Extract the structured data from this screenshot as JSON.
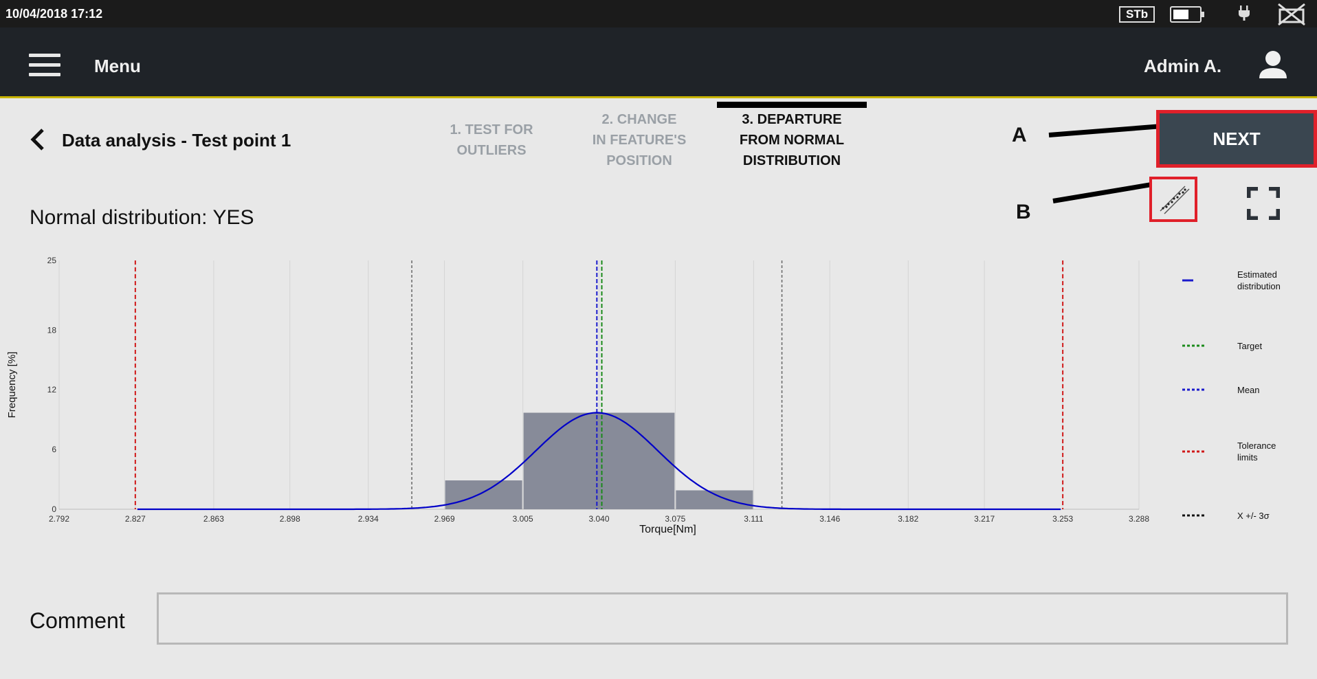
{
  "status": {
    "datetime": "10/04/2018 17:12",
    "stb": "STb",
    "battery_level": 0.6
  },
  "nav": {
    "menu_label": "Menu",
    "user_name": "Admin A."
  },
  "page": {
    "title": "Data analysis - Test point 1"
  },
  "steps": [
    {
      "line1": "1. TEST FOR",
      "line2": "OUTLIERS",
      "line3": "",
      "active": false
    },
    {
      "line1": "2. CHANGE",
      "line2": "IN FEATURE'S",
      "line3": "POSITION",
      "active": false
    },
    {
      "line1": "3. DEPARTURE",
      "line2": "FROM NORMAL",
      "line3": "DISTRIBUTION",
      "active": true
    }
  ],
  "toolbar": {
    "next_label": "NEXT"
  },
  "annotations": {
    "a": "A",
    "b": "B"
  },
  "result": {
    "label": "Normal distribution:",
    "value": "YES"
  },
  "comment": {
    "label": "Comment",
    "value": ""
  },
  "colors": {
    "accent_red": "#e0202a",
    "nav_bg": "#1f2328",
    "bar": "#878b99",
    "curve": "#0000c8",
    "target": "#1a8a1a",
    "mean": "#1a1acc",
    "tolerance": "#d01818",
    "sigma": "#333333"
  },
  "chart_data": {
    "type": "bar",
    "xlabel": "Torque[Nm]",
    "ylabel": "Frequency [%]",
    "ylim": [
      0,
      25
    ],
    "yticks": [
      "0",
      "6",
      "12",
      "18",
      "25"
    ],
    "xlim": [
      2.792,
      3.288
    ],
    "xticks": [
      "2.792",
      "2.827",
      "2.863",
      "2.898",
      "2.934",
      "2.969",
      "3.005",
      "3.040",
      "3.075",
      "3.111",
      "3.146",
      "3.182",
      "3.217",
      "3.253",
      "3.288"
    ],
    "bins": [
      {
        "from": 2.969,
        "to": 3.005,
        "value": 2.9
      },
      {
        "from": 3.005,
        "to": 3.075,
        "value": 9.7
      },
      {
        "from": 3.075,
        "to": 3.111,
        "value": 1.9
      }
    ],
    "curve": {
      "mean": 3.039,
      "sigma": 0.028,
      "peak": 9.7
    },
    "lines": {
      "mean": 3.039,
      "target": 3.04,
      "tolerance": [
        2.827,
        3.253
      ],
      "sigma_bounds": [
        2.954,
        3.124
      ]
    },
    "grid": true,
    "legend_position": "right",
    "legend": [
      {
        "label": "Estimated distribution",
        "style": "solid",
        "color": "#1a1acc"
      },
      {
        "label": "Target",
        "style": "dotted",
        "color": "#1a8a1a"
      },
      {
        "label": "Mean",
        "style": "dotted",
        "color": "#1a1acc"
      },
      {
        "label": "Tolerance limits",
        "style": "dotted",
        "color": "#d01818"
      },
      {
        "label": "X +/- 3σ",
        "style": "dotted",
        "color": "#111111"
      }
    ]
  }
}
